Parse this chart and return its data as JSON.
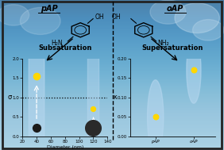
{
  "bg_color": "#7ab8d4",
  "border_color": "#222222",
  "title_pap": "pAP",
  "title_oap": "oAP",
  "left_title": "Subsaturation",
  "right_title": "Supersaturation",
  "left_xlabel": "Diameter (nm)",
  "left_ylabel": "σ",
  "right_ylabel": "κ",
  "left_xlim": [
    20,
    140
  ],
  "left_ylim": [
    0,
    2.0
  ],
  "left_yticks": [
    0.0,
    0.5,
    1.0,
    1.5,
    2.0
  ],
  "left_xticks": [
    20,
    40,
    60,
    80,
    100,
    120,
    140
  ],
  "right_xlim": [
    0,
    1
  ],
  "right_ylim": [
    0,
    0.2
  ],
  "right_yticks": [
    0.0,
    0.05,
    0.1,
    0.15,
    0.2
  ],
  "right_xticks": [
    0.3,
    0.75
  ],
  "right_xticklabels": [
    "pAP",
    "oAP"
  ],
  "dashed_line_y": 1.0,
  "sky_color": "#7ab8d4",
  "cloud_color": "#c8e0f0",
  "yellow_color": "#FFD700",
  "glow_color": "#b8d8f0",
  "black_dot_color": "#1a1a1a",
  "black_dot2_color": "#2a2a2a"
}
